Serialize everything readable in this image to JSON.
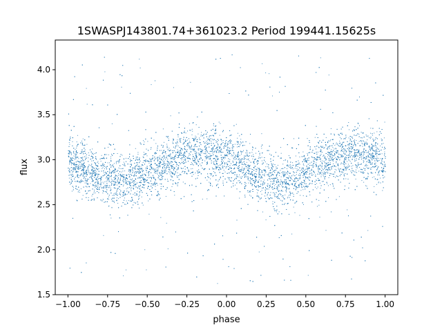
{
  "chart_data": {
    "type": "scatter",
    "title": "1SWASPJ143801.74+361023.2 Period 199441.15625s",
    "xlabel": "phase",
    "ylabel": "flux",
    "xlim": [
      -1.08,
      1.08
    ],
    "ylim": [
      1.5,
      4.33
    ],
    "xticks": [
      -1.0,
      -0.75,
      -0.5,
      -0.25,
      0.0,
      0.25,
      0.5,
      0.75,
      1.0
    ],
    "xtick_labels": [
      "−1.00",
      "−0.75",
      "−0.50",
      "−0.25",
      "0.00",
      "0.25",
      "0.50",
      "0.75",
      "1.00"
    ],
    "yticks": [
      1.5,
      2.0,
      2.5,
      3.0,
      3.5,
      4.0
    ],
    "ytick_labels": [
      "1.5",
      "2.0",
      "2.5",
      "3.0",
      "3.5",
      "4.0"
    ],
    "grid": false,
    "legend": "none",
    "point_color": "#1f77b4",
    "x_range": [
      -1.0,
      1.0
    ],
    "trend": {
      "x": [
        -1.0,
        -0.9,
        -0.8,
        -0.7,
        -0.6,
        -0.5,
        -0.4,
        -0.3,
        -0.2,
        -0.1,
        0.0,
        0.1,
        0.2,
        0.3,
        0.4,
        0.5,
        0.6,
        0.7,
        0.8,
        0.9,
        1.0
      ],
      "y": [
        2.97,
        2.9,
        2.83,
        2.78,
        2.79,
        2.85,
        2.94,
        3.03,
        3.07,
        3.08,
        3.02,
        2.92,
        2.83,
        2.78,
        2.79,
        2.85,
        2.94,
        3.03,
        3.07,
        3.05,
        3.0
      ]
    },
    "core_spread": 0.15,
    "outlier_range": [
      1.62,
      4.2
    ]
  }
}
